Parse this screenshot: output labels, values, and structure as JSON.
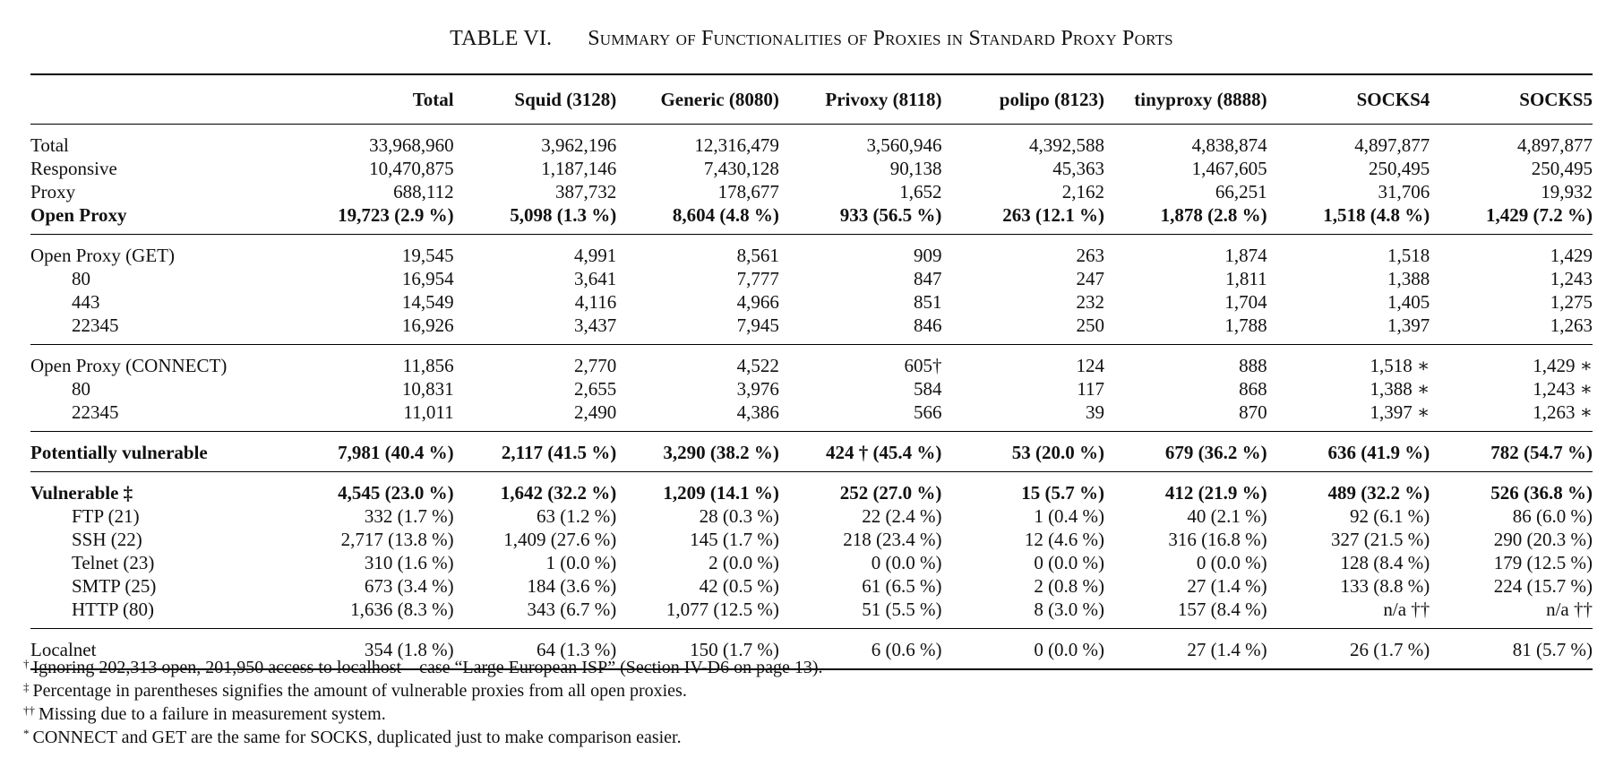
{
  "caption": {
    "number": "TABLE VI.",
    "title": "Summary of Functionalities of Proxies in Standard Proxy Ports"
  },
  "columns": [
    "",
    "Total",
    "Squid (3128)",
    "Generic (8080)",
    "Privoxy (8118)",
    "polipo (8123)",
    "tinyproxy (8888)",
    "SOCKS4",
    "SOCKS5"
  ],
  "sections": [
    {
      "rows": [
        {
          "label": "Total",
          "indent": false,
          "bold": false,
          "values": [
            "33,968,960",
            "3,962,196",
            "12,316,479",
            "3,560,946",
            "4,392,588",
            "4,838,874",
            "4,897,877",
            "4,897,877"
          ]
        },
        {
          "label": "Responsive",
          "indent": false,
          "bold": false,
          "values": [
            "10,470,875",
            "1,187,146",
            "7,430,128",
            "90,138",
            "45,363",
            "1,467,605",
            "250,495",
            "250,495"
          ]
        },
        {
          "label": "Proxy",
          "indent": false,
          "bold": false,
          "values": [
            "688,112",
            "387,732",
            "178,677",
            "1,652",
            "2,162",
            "66,251",
            "31,706",
            "19,932"
          ]
        },
        {
          "label": "Open Proxy",
          "indent": false,
          "bold": true,
          "values": [
            "19,723 (2.9 %)",
            "5,098 (1.3 %)",
            "8,604 (4.8 %)",
            "933 (56.5 %)",
            "263 (12.1 %)",
            "1,878 (2.8 %)",
            "1,518 (4.8 %)",
            "1,429 (7.2 %)"
          ]
        }
      ]
    },
    {
      "rows": [
        {
          "label": "Open Proxy (GET)",
          "indent": false,
          "bold": false,
          "values": [
            "19,545",
            "4,991",
            "8,561",
            "909",
            "263",
            "1,874",
            "1,518",
            "1,429"
          ]
        },
        {
          "label": "80",
          "indent": true,
          "bold": false,
          "values": [
            "16,954",
            "3,641",
            "7,777",
            "847",
            "247",
            "1,811",
            "1,388",
            "1,243"
          ]
        },
        {
          "label": "443",
          "indent": true,
          "bold": false,
          "values": [
            "14,549",
            "4,116",
            "4,966",
            "851",
            "232",
            "1,704",
            "1,405",
            "1,275"
          ]
        },
        {
          "label": "22345",
          "indent": true,
          "bold": false,
          "values": [
            "16,926",
            "3,437",
            "7,945",
            "846",
            "250",
            "1,788",
            "1,397",
            "1,263"
          ]
        }
      ]
    },
    {
      "rows": [
        {
          "label": "Open Proxy (CONNECT)",
          "indent": false,
          "bold": false,
          "values": [
            "11,856",
            "2,770",
            "4,522",
            "605†",
            "124",
            "888",
            "1,518 ∗",
            "1,429 ∗"
          ]
        },
        {
          "label": "80",
          "indent": true,
          "bold": false,
          "values": [
            "10,831",
            "2,655",
            "3,976",
            "584",
            "117",
            "868",
            "1,388 ∗",
            "1,243 ∗"
          ]
        },
        {
          "label": "22345",
          "indent": true,
          "bold": false,
          "values": [
            "11,011",
            "2,490",
            "4,386",
            "566",
            "39",
            "870",
            "1,397 ∗",
            "1,263 ∗"
          ]
        }
      ]
    },
    {
      "rows": [
        {
          "label": "Potentially vulnerable",
          "indent": false,
          "bold": true,
          "values": [
            "7,981 (40.4 %)",
            "2,117 (41.5 %)",
            "3,290 (38.2 %)",
            "424 † (45.4 %)",
            "53 (20.0 %)",
            "679 (36.2 %)",
            "636 (41.9 %)",
            "782 (54.7 %)"
          ]
        }
      ]
    },
    {
      "rows": [
        {
          "label": "Vulnerable ‡",
          "indent": false,
          "bold": true,
          "values": [
            "4,545 (23.0 %)",
            "1,642 (32.2 %)",
            "1,209 (14.1 %)",
            "252 (27.0 %)",
            "15 (5.7 %)",
            "412 (21.9 %)",
            "489 (32.2 %)",
            "526 (36.8 %)"
          ]
        },
        {
          "label": "FTP (21)",
          "indent": true,
          "bold": false,
          "values": [
            "332 (1.7 %)",
            "63 (1.2 %)",
            "28 (0.3 %)",
            "22 (2.4 %)",
            "1 (0.4 %)",
            "40 (2.1 %)",
            "92 (6.1 %)",
            "86 (6.0 %)"
          ]
        },
        {
          "label": "SSH (22)",
          "indent": true,
          "bold": false,
          "values": [
            "2,717 (13.8 %)",
            "1,409 (27.6 %)",
            "145 (1.7 %)",
            "218 (23.4 %)",
            "12 (4.6 %)",
            "316 (16.8 %)",
            "327 (21.5 %)",
            "290 (20.3 %)"
          ]
        },
        {
          "label": "Telnet (23)",
          "indent": true,
          "bold": false,
          "values": [
            "310 (1.6 %)",
            "1 (0.0 %)",
            "2 (0.0 %)",
            "0 (0.0 %)",
            "0 (0.0 %)",
            "0 (0.0 %)",
            "128 (8.4 %)",
            "179 (12.5 %)"
          ]
        },
        {
          "label": "SMTP (25)",
          "indent": true,
          "bold": false,
          "values": [
            "673 (3.4 %)",
            "184 (3.6 %)",
            "42 (0.5 %)",
            "61 (6.5 %)",
            "2 (0.8 %)",
            "27 (1.4 %)",
            "133 (8.8 %)",
            "224 (15.7 %)"
          ]
        },
        {
          "label": "HTTP (80)",
          "indent": true,
          "bold": false,
          "values": [
            "1,636 (8.3 %)",
            "343 (6.7 %)",
            "1,077 (12.5 %)",
            "51 (5.5 %)",
            "8 (3.0 %)",
            "157 (8.4 %)",
            "n/a ††",
            "n/a ††"
          ]
        }
      ]
    },
    {
      "rows": [
        {
          "label": "Localnet",
          "indent": false,
          "bold": false,
          "values": [
            "354 (1.8 %)",
            "64 (1.3 %)",
            "150 (1.7 %)",
            "6 (0.6 %)",
            "0 (0.0 %)",
            "27 (1.4 %)",
            "26 (1.7 %)",
            "81 (5.7 %)"
          ]
        }
      ]
    }
  ],
  "footnotes": [
    {
      "mark": "†",
      "text": "Ignoring 202,313 open, 201,950 access to localhost – case “Large European ISP” (Section IV-D6 on page 13)."
    },
    {
      "mark": "‡",
      "text": "Percentage in parentheses signifies the amount of vulnerable proxies from all open proxies."
    },
    {
      "mark": "††",
      "text": "Missing due to a failure in measurement system."
    },
    {
      "mark": "*",
      "text": "CONNECT and GET are the same for SOCKS, duplicated just to make comparison easier."
    }
  ]
}
